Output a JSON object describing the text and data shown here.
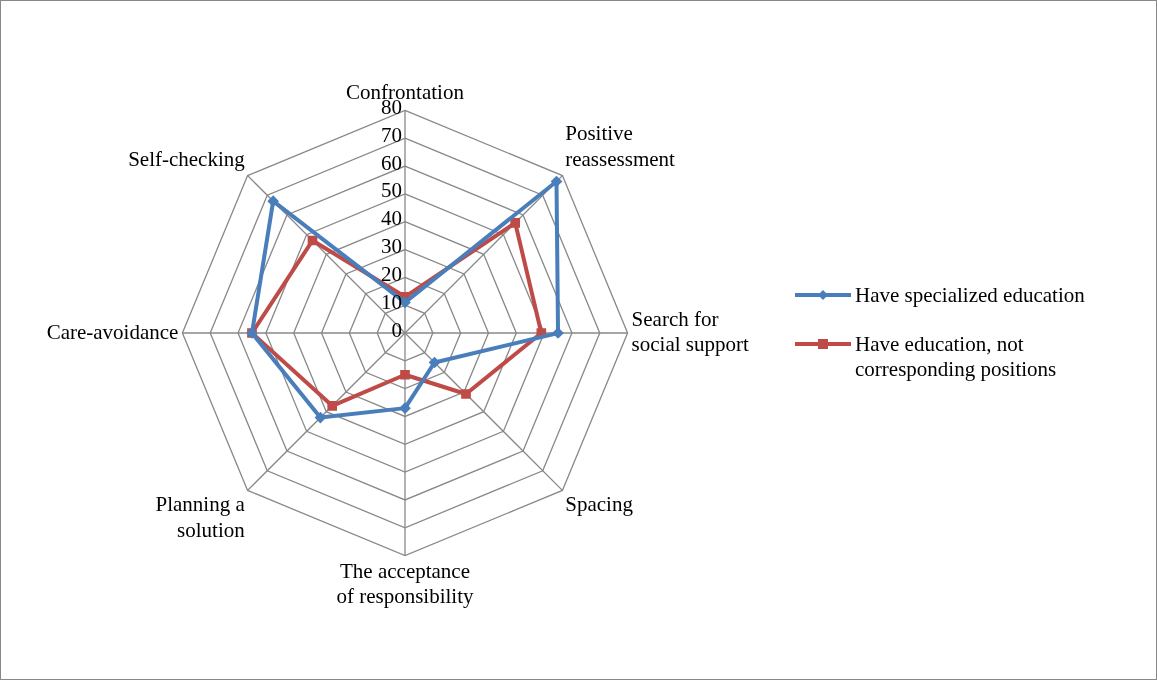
{
  "chart_data": {
    "type": "radar",
    "categories": [
      "Confrontation",
      "Positive reassessment",
      "Search for social support",
      "Spacing",
      "The acceptance of responsibility",
      "Planning a solution",
      "Care-avoidance",
      "Self-checking"
    ],
    "series": [
      {
        "name": "Have specialized education",
        "color": "#4a7ebb",
        "marker": "diamond",
        "values": [
          11,
          77,
          55,
          15,
          27,
          43,
          55,
          67
        ]
      },
      {
        "name": "Have education, not corresponding positions",
        "color": "#be4b48",
        "marker": "square",
        "values": [
          13,
          56,
          49,
          31,
          15,
          37,
          55,
          47
        ]
      }
    ],
    "ylim": [
      0,
      80
    ],
    "yticks": [
      0,
      10,
      20,
      30,
      40,
      50,
      60,
      70,
      80
    ],
    "grid": true,
    "legend": "right"
  }
}
